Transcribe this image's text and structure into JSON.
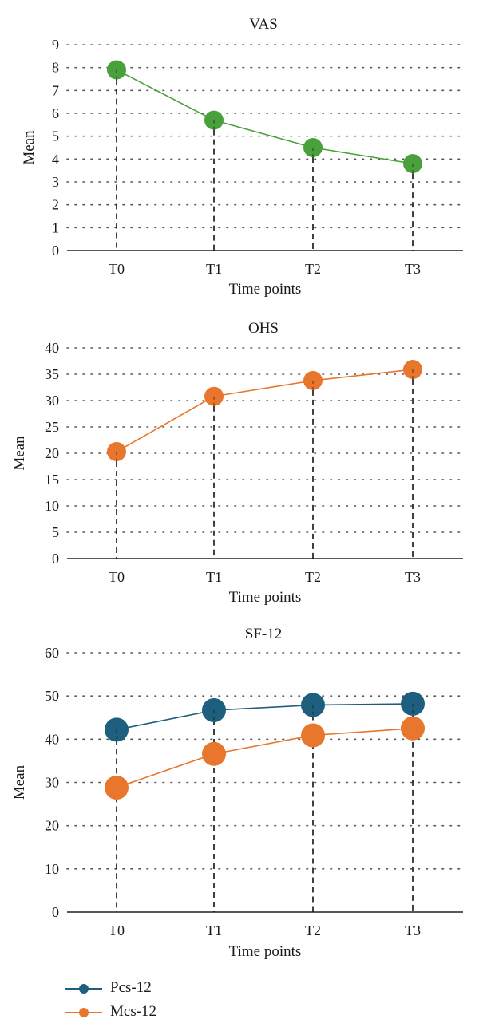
{
  "chart_data": [
    {
      "type": "line",
      "title": "VAS",
      "xlabel": "Time points",
      "ylabel": "Mean",
      "categories": [
        "T0",
        "T1",
        "T2",
        "T3"
      ],
      "ylim": [
        0,
        9
      ],
      "yticks": [
        0,
        1,
        2,
        3,
        4,
        5,
        6,
        7,
        8,
        9
      ],
      "grid": "dotted horizontal",
      "series": [
        {
          "values": [
            7.9,
            5.7,
            4.5,
            3.8
          ],
          "color": "#4aa03a"
        }
      ]
    },
    {
      "type": "line",
      "title": "OHS",
      "xlabel": "Time points",
      "ylabel": "Mean",
      "categories": [
        "T0",
        "T1",
        "T2",
        "T3"
      ],
      "ylim": [
        0,
        40
      ],
      "yticks": [
        0,
        5,
        10,
        15,
        20,
        25,
        30,
        35,
        40
      ],
      "grid": "dotted horizontal",
      "series": [
        {
          "values": [
            20.3,
            30.8,
            33.8,
            35.9
          ],
          "color": "#e8762d"
        }
      ]
    },
    {
      "type": "line",
      "title": "SF-12",
      "xlabel": "Time points",
      "ylabel": "Mean",
      "categories": [
        "T0",
        "T1",
        "T2",
        "T3"
      ],
      "ylim": [
        0,
        60
      ],
      "yticks": [
        0,
        10,
        20,
        30,
        40,
        50,
        60
      ],
      "grid": "dotted horizontal",
      "legend_position": "bottom-left",
      "series": [
        {
          "name": "Pcs-12",
          "values": [
            42.2,
            46.7,
            47.9,
            48.2
          ],
          "color": "#1e5f80"
        },
        {
          "name": "Mcs-12",
          "values": [
            28.8,
            36.6,
            40.9,
            42.5
          ],
          "color": "#e8762d"
        }
      ]
    }
  ]
}
